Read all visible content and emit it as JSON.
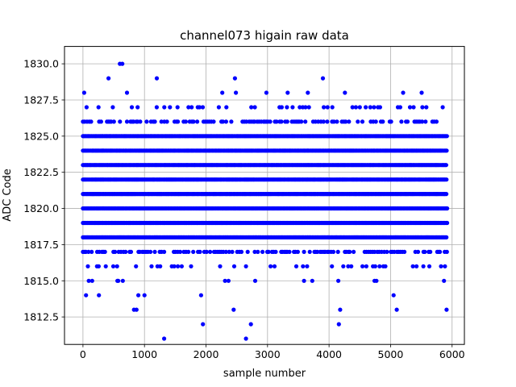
{
  "chart_data": {
    "type": "scatter",
    "title": "channel073 higain raw data",
    "xlabel": "sample number",
    "ylabel": "ADC Code",
    "xlim": [
      -300,
      6200
    ],
    "ylim": [
      1810.6,
      1831.2
    ],
    "xticks": [
      0,
      1000,
      2000,
      3000,
      4000,
      5000,
      6000
    ],
    "xtick_labels": [
      "0",
      "1000",
      "2000",
      "3000",
      "4000",
      "5000",
      "6000"
    ],
    "yticks": [
      1812.5,
      1815.0,
      1817.5,
      1820.0,
      1822.5,
      1825.0,
      1827.5,
      1830.0
    ],
    "ytick_labels": [
      "1812.5",
      "1815.0",
      "1817.5",
      "1820.0",
      "1822.5",
      "1825.0",
      "1827.5",
      "1830.0"
    ],
    "grid": true,
    "marker_color": "#0000ff",
    "n_samples": 5920,
    "dense_rows": [
      1818,
      1819,
      1820,
      1821,
      1822,
      1823,
      1824,
      1825
    ],
    "medium_rows": [
      1817,
      1826
    ],
    "sparse_rows": [
      1816,
      1827
    ],
    "outliers": {
      "x": [
        20,
        50,
        95,
        150,
        260,
        415,
        560,
        600,
        640,
        830,
        870,
        900,
        1000,
        1200,
        1320,
        1920,
        1950,
        2450,
        2470,
        2650,
        2730,
        3900,
        4160,
        4180,
        5050,
        5100,
        5910
      ],
      "y": [
        1828,
        1814,
        1815,
        1815,
        1814,
        1829,
        1815,
        1830,
        1830,
        1813,
        1813,
        1814,
        1814,
        1829,
        1811,
        1814,
        1812,
        1813,
        1829,
        1811,
        1812,
        1829,
        1812,
        1813,
        1814,
        1813,
        1813
      ]
    }
  }
}
